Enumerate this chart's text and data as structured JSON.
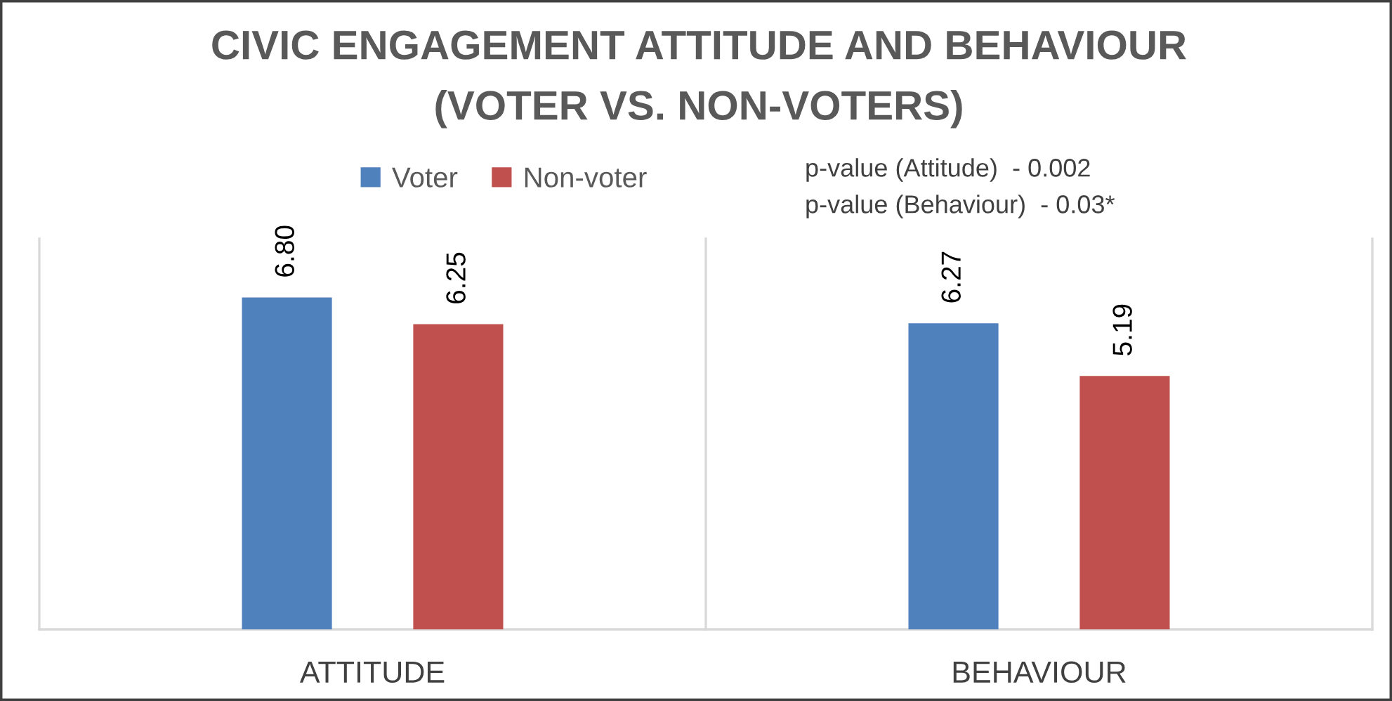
{
  "chart_data": {
    "type": "bar",
    "title": "CIVIC ENGAGEMENT ATTITUDE AND BEHAVIOUR\n(VOTER VS. NON-VOTERS)",
    "categories": [
      "ATTITUDE",
      "BEHAVIOUR"
    ],
    "series": [
      {
        "name": "Voter",
        "color": "#4f81bd",
        "values": [
          6.8,
          6.27
        ],
        "value_labels": [
          "6.80",
          "6.27"
        ]
      },
      {
        "name": "Non-voter",
        "color": "#c0504d",
        "values": [
          6.25,
          5.19
        ],
        "value_labels": [
          "6.25",
          "5.19"
        ]
      }
    ],
    "ylim": [
      0,
      8
    ],
    "tick_labels": "x",
    "grid": "x",
    "legend": "top",
    "annotations": [
      "p-value (Attitude)  - 0.002",
      "p-value (Behaviour)  - 0.03*"
    ]
  }
}
